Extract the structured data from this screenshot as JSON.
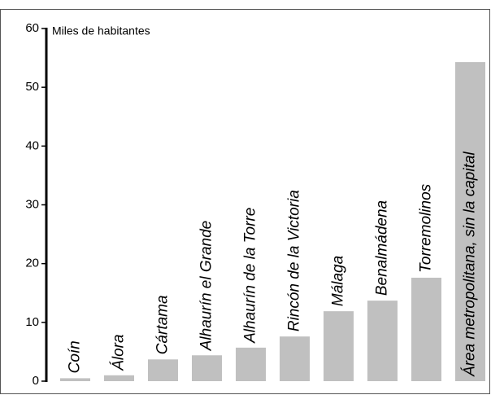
{
  "chart_data": {
    "type": "bar",
    "y_label": "Miles de habitantes",
    "categories": [
      "Coín",
      "Álora",
      "Cártama",
      "Alhaurín el Grande",
      "Alhaurín de la Torre",
      "Rincón de la Victoria",
      "Málaga",
      "Benalmádena",
      "Torremolinos",
      "Área metropolitana, sin la capital"
    ],
    "values": [
      0.5,
      1.0,
      3.7,
      4.4,
      5.7,
      7.6,
      11.9,
      13.7,
      17.6,
      54.3
    ],
    "color": "#c0c0c0",
    "ylim": [
      0,
      60
    ],
    "yticks": [
      0,
      10,
      20,
      30,
      40,
      50,
      60
    ]
  }
}
